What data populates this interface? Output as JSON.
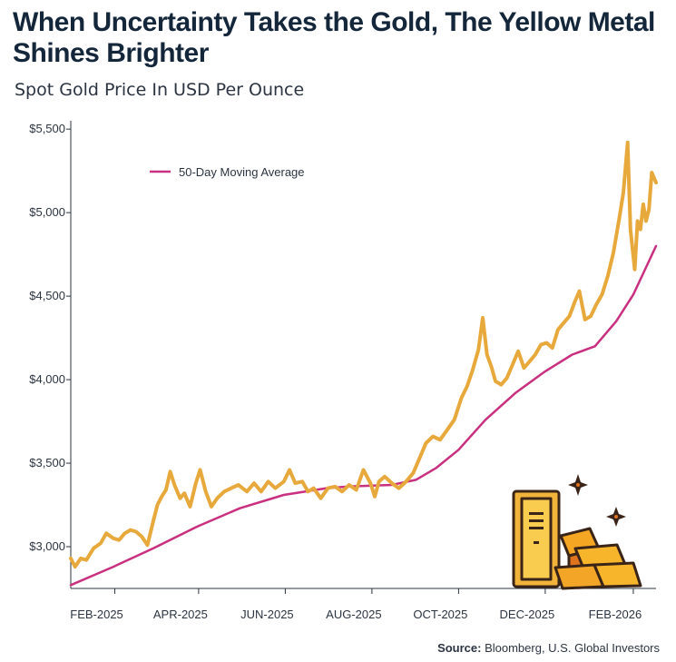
{
  "chart_data": {
    "type": "line",
    "title": "When Uncertainty Takes the Gold, The Yellow Metal Shines Brighter",
    "subtitle": "Spot Gold Price In USD Per Ounce",
    "ylim": [
      2750,
      5550
    ],
    "yticks": [
      3000,
      3500,
      4000,
      4500,
      5000,
      5500
    ],
    "ytick_labels": [
      "$3,000",
      "$3,500",
      "$4,000",
      "$4,500",
      "$5,000",
      "$5,500"
    ],
    "x_range": [
      "2025-01-01",
      "2026-02-17"
    ],
    "xticks": [
      "2025-02-01",
      "2025-04-01",
      "2025-06-01",
      "2025-08-01",
      "2025-10-01",
      "2025-12-01",
      "2026-02-01"
    ],
    "xtick_labels": [
      "FEB-2025",
      "APR-2025",
      "JUN-2025",
      "AUG-2025",
      "OCT-2025",
      "DEC-2025",
      "FEB-2026"
    ],
    "grid": false,
    "legend_position": "top-left",
    "series": [
      {
        "name": "",
        "color": "#e8a93c",
        "points": [
          [
            "2025-01-01",
            2930
          ],
          [
            "2025-01-04",
            2880
          ],
          [
            "2025-01-08",
            2930
          ],
          [
            "2025-01-12",
            2920
          ],
          [
            "2025-01-17",
            2990
          ],
          [
            "2025-01-22",
            3020
          ],
          [
            "2025-01-26",
            3080
          ],
          [
            "2025-01-31",
            3050
          ],
          [
            "2025-02-04",
            3040
          ],
          [
            "2025-02-08",
            3080
          ],
          [
            "2025-02-12",
            3100
          ],
          [
            "2025-02-16",
            3090
          ],
          [
            "2025-02-20",
            3060
          ],
          [
            "2025-02-24",
            3010
          ],
          [
            "2025-02-28",
            3150
          ],
          [
            "2025-03-03",
            3250
          ],
          [
            "2025-03-06",
            3300
          ],
          [
            "2025-03-09",
            3340
          ],
          [
            "2025-03-12",
            3450
          ],
          [
            "2025-03-15",
            3370
          ],
          [
            "2025-03-19",
            3290
          ],
          [
            "2025-03-22",
            3320
          ],
          [
            "2025-03-26",
            3240
          ],
          [
            "2025-03-30",
            3380
          ],
          [
            "2025-04-02",
            3460
          ],
          [
            "2025-04-06",
            3330
          ],
          [
            "2025-04-10",
            3240
          ],
          [
            "2025-04-14",
            3290
          ],
          [
            "2025-04-19",
            3330
          ],
          [
            "2025-04-24",
            3350
          ],
          [
            "2025-04-29",
            3370
          ],
          [
            "2025-05-05",
            3330
          ],
          [
            "2025-05-10",
            3380
          ],
          [
            "2025-05-15",
            3330
          ],
          [
            "2025-05-20",
            3390
          ],
          [
            "2025-05-25",
            3350
          ],
          [
            "2025-05-31",
            3390
          ],
          [
            "2025-06-04",
            3460
          ],
          [
            "2025-06-08",
            3380
          ],
          [
            "2025-06-13",
            3390
          ],
          [
            "2025-06-17",
            3330
          ],
          [
            "2025-06-21",
            3350
          ],
          [
            "2025-06-26",
            3290
          ],
          [
            "2025-07-01",
            3350
          ],
          [
            "2025-07-06",
            3360
          ],
          [
            "2025-07-11",
            3330
          ],
          [
            "2025-07-16",
            3370
          ],
          [
            "2025-07-21",
            3340
          ],
          [
            "2025-07-26",
            3460
          ],
          [
            "2025-07-31",
            3380
          ],
          [
            "2025-08-03",
            3300
          ],
          [
            "2025-08-06",
            3390
          ],
          [
            "2025-08-10",
            3420
          ],
          [
            "2025-08-15",
            3380
          ],
          [
            "2025-08-20",
            3350
          ],
          [
            "2025-08-25",
            3390
          ],
          [
            "2025-08-30",
            3440
          ],
          [
            "2025-09-03",
            3520
          ],
          [
            "2025-09-08",
            3620
          ],
          [
            "2025-09-13",
            3660
          ],
          [
            "2025-09-18",
            3640
          ],
          [
            "2025-09-23",
            3700
          ],
          [
            "2025-09-28",
            3760
          ],
          [
            "2025-10-03",
            3890
          ],
          [
            "2025-10-07",
            3960
          ],
          [
            "2025-10-11",
            4060
          ],
          [
            "2025-10-15",
            4180
          ],
          [
            "2025-10-18",
            4370
          ],
          [
            "2025-10-21",
            4150
          ],
          [
            "2025-10-24",
            4080
          ],
          [
            "2025-10-27",
            3990
          ],
          [
            "2025-10-31",
            3970
          ],
          [
            "2025-11-04",
            4010
          ],
          [
            "2025-11-08",
            4090
          ],
          [
            "2025-11-12",
            4170
          ],
          [
            "2025-11-16",
            4070
          ],
          [
            "2025-11-20",
            4110
          ],
          [
            "2025-11-24",
            4150
          ],
          [
            "2025-11-28",
            4210
          ],
          [
            "2025-12-02",
            4220
          ],
          [
            "2025-12-06",
            4190
          ],
          [
            "2025-12-10",
            4300
          ],
          [
            "2025-12-14",
            4340
          ],
          [
            "2025-12-18",
            4380
          ],
          [
            "2025-12-22",
            4470
          ],
          [
            "2025-12-25",
            4530
          ],
          [
            "2025-12-29",
            4360
          ],
          [
            "2026-01-02",
            4380
          ],
          [
            "2026-01-06",
            4450
          ],
          [
            "2026-01-10",
            4510
          ],
          [
            "2026-01-14",
            4620
          ],
          [
            "2026-01-18",
            4760
          ],
          [
            "2026-01-22",
            4960
          ],
          [
            "2026-01-25",
            5120
          ],
          [
            "2026-01-28",
            5420
          ],
          [
            "2026-01-30",
            4900
          ],
          [
            "2026-02-02",
            4660
          ],
          [
            "2026-02-04",
            4950
          ],
          [
            "2026-02-06",
            4900
          ],
          [
            "2026-02-08",
            5050
          ],
          [
            "2026-02-10",
            4950
          ],
          [
            "2026-02-12",
            5020
          ],
          [
            "2026-02-14",
            5240
          ],
          [
            "2026-02-17",
            5180
          ]
        ]
      },
      {
        "name": "50-Day Moving Average",
        "color": "#c9307f",
        "points": [
          [
            "2025-01-01",
            2770
          ],
          [
            "2025-01-31",
            2880
          ],
          [
            "2025-02-28",
            2990
          ],
          [
            "2025-03-31",
            3120
          ],
          [
            "2025-04-30",
            3230
          ],
          [
            "2025-05-31",
            3310
          ],
          [
            "2025-06-30",
            3350
          ],
          [
            "2025-07-15",
            3360
          ],
          [
            "2025-08-15",
            3370
          ],
          [
            "2025-09-01",
            3400
          ],
          [
            "2025-09-15",
            3470
          ],
          [
            "2025-10-01",
            3580
          ],
          [
            "2025-10-20",
            3760
          ],
          [
            "2025-11-10",
            3920
          ],
          [
            "2025-12-01",
            4050
          ],
          [
            "2025-12-20",
            4150
          ],
          [
            "2026-01-05",
            4200
          ],
          [
            "2026-01-20",
            4350
          ],
          [
            "2026-02-01",
            4510
          ],
          [
            "2026-02-17",
            4800
          ]
        ]
      }
    ],
    "source_label": "Source:",
    "source_text": " Bloomberg, U.S. Global Investors"
  }
}
